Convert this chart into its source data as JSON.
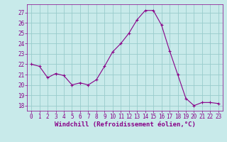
{
  "x": [
    0,
    1,
    2,
    3,
    4,
    5,
    6,
    7,
    8,
    9,
    10,
    11,
    12,
    13,
    14,
    15,
    16,
    17,
    18,
    19,
    20,
    21,
    22,
    23
  ],
  "y": [
    22.0,
    21.8,
    20.7,
    21.1,
    20.9,
    20.0,
    20.2,
    20.0,
    20.5,
    21.8,
    23.2,
    24.0,
    25.0,
    26.3,
    27.2,
    27.2,
    25.8,
    23.3,
    21.0,
    18.7,
    18.0,
    18.3,
    18.3,
    18.2
  ],
  "line_color": "#880088",
  "marker": "+",
  "bg_color": "#c8eaea",
  "grid_color": "#99cccc",
  "xlabel": "Windchill (Refroidissement éolien,°C)",
  "xlabel_color": "#880088",
  "tick_color": "#880088",
  "ylim": [
    17.5,
    27.8
  ],
  "yticks": [
    18,
    19,
    20,
    21,
    22,
    23,
    24,
    25,
    26,
    27
  ],
  "xticks": [
    0,
    1,
    2,
    3,
    4,
    5,
    6,
    7,
    8,
    9,
    10,
    11,
    12,
    13,
    14,
    15,
    16,
    17,
    18,
    19,
    20,
    21,
    22,
    23
  ],
  "tick_fontsize": 5.5,
  "label_fontsize": 6.5,
  "xlim": [
    -0.5,
    23.5
  ]
}
